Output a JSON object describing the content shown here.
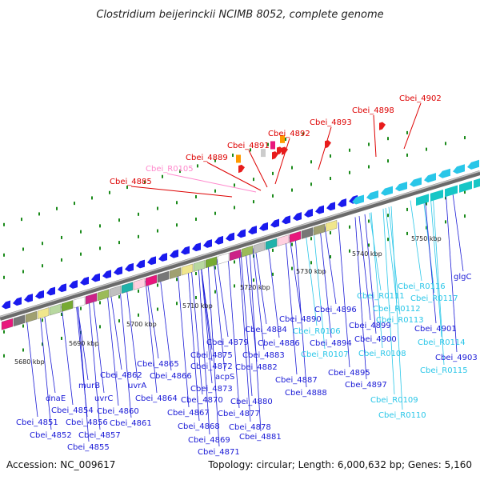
{
  "title": "Clostridium beijerinckii NCIMB 8052, complete genome",
  "footer": {
    "accession": "Accession: NC_009617",
    "summary": "Topology: circular; Length: 6,000,632 bp; Genes: 5,160"
  },
  "colors": {
    "forward_gene": "#1a1aee",
    "reverse_gene": "#d0d0d0",
    "rna_gene": "#29c6e8",
    "highlight_gene": "#e81c1c",
    "trna_label": "#ff88cc",
    "backbone": "#808080",
    "dots": "#1a8a1a",
    "orange": "#ff9900"
  },
  "ticks": [
    "5680 kbp",
    "5690 kbp",
    "5700 kbp",
    "5710 kbp",
    "5720 kbp",
    "5730 kbp",
    "5740 kbp",
    "5750 kbp"
  ],
  "labels_top": [
    {
      "text": "Cbei_4885",
      "color": "red"
    },
    {
      "text": "Cbei_R0105",
      "color": "pink"
    },
    {
      "text": "Cbei_4889",
      "color": "red"
    },
    {
      "text": "Cbei_4891",
      "color": "red"
    },
    {
      "text": "Cbei_4892",
      "color": "red"
    },
    {
      "text": "Cbei_4893",
      "color": "red"
    },
    {
      "text": "Cbei_4898",
      "color": "red"
    },
    {
      "text": "Cbei_4902",
      "color": "red"
    }
  ],
  "labels_bottom": [
    {
      "text": "Cbei_4851",
      "color": "blue"
    },
    {
      "text": "Cbei_4852",
      "color": "blue"
    },
    {
      "text": "dnaE",
      "color": "blue"
    },
    {
      "text": "Cbei_4854",
      "color": "blue"
    },
    {
      "text": "Cbei_4855",
      "color": "blue"
    },
    {
      "text": "Cbei_4856",
      "color": "blue"
    },
    {
      "text": "murB",
      "color": "blue"
    },
    {
      "text": "Cbei_4857",
      "color": "blue"
    },
    {
      "text": "uvrC",
      "color": "blue"
    },
    {
      "text": "Cbei_4860",
      "color": "blue"
    },
    {
      "text": "Cbei_4862",
      "color": "blue"
    },
    {
      "text": "Cbei_4861",
      "color": "blue"
    },
    {
      "text": "uvrA",
      "color": "blue"
    },
    {
      "text": "Cbei_4865",
      "color": "blue"
    },
    {
      "text": "Cbei_4864",
      "color": "blue"
    },
    {
      "text": "Cbei_4866",
      "color": "blue"
    },
    {
      "text": "Cbei_4867",
      "color": "blue"
    },
    {
      "text": "Cbei_4868",
      "color": "blue"
    },
    {
      "text": "Cbei_4869",
      "color": "blue"
    },
    {
      "text": "Cbei_4870",
      "color": "blue"
    },
    {
      "text": "Cbei_4871",
      "color": "blue"
    },
    {
      "text": "Cbei_4872",
      "color": "blue"
    },
    {
      "text": "Cbei_4873",
      "color": "blue"
    },
    {
      "text": "Cbei_4875",
      "color": "blue"
    },
    {
      "text": "Cbei_4879",
      "color": "blue"
    },
    {
      "text": "acpS",
      "color": "blue"
    },
    {
      "text": "Cbei_4877",
      "color": "blue"
    },
    {
      "text": "Cbei_4878",
      "color": "blue"
    },
    {
      "text": "Cbei_4880",
      "color": "blue"
    },
    {
      "text": "Cbei_4881",
      "color": "blue"
    },
    {
      "text": "Cbei_4882",
      "color": "blue"
    },
    {
      "text": "Cbei_4883",
      "color": "blue"
    },
    {
      "text": "Cbei_4884",
      "color": "blue"
    },
    {
      "text": "Cbei_4886",
      "color": "blue"
    },
    {
      "text": "Cbei_4887",
      "color": "blue"
    },
    {
      "text": "Cbei_4888",
      "color": "blue"
    },
    {
      "text": "Cbei_4890",
      "color": "blue"
    },
    {
      "text": "Cbei_R0106",
      "color": "cyan"
    },
    {
      "text": "Cbei_4894",
      "color": "blue"
    },
    {
      "text": "Cbei_R0107",
      "color": "cyan"
    },
    {
      "text": "Cbei_4895",
      "color": "blue"
    },
    {
      "text": "Cbei_4896",
      "color": "blue"
    },
    {
      "text": "Cbei_4897",
      "color": "blue"
    },
    {
      "text": "Cbei_4899",
      "color": "blue"
    },
    {
      "text": "Cbei_4900",
      "color": "blue"
    },
    {
      "text": "Cbei_R0108",
      "color": "cyan"
    },
    {
      "text": "Cbei_R0111",
      "color": "cyan"
    },
    {
      "text": "Cbei_R0112",
      "color": "cyan"
    },
    {
      "text": "Cbei_R0113",
      "color": "cyan"
    },
    {
      "text": "Cbei_R0109",
      "color": "cyan"
    },
    {
      "text": "Cbei_R0110",
      "color": "cyan"
    },
    {
      "text": "Cbei_R0116",
      "color": "cyan"
    },
    {
      "text": "Cbei_R0117",
      "color": "cyan"
    },
    {
      "text": "Cbei_4901",
      "color": "blue"
    },
    {
      "text": "Cbei_R0114",
      "color": "cyan"
    },
    {
      "text": "Cbei_4903",
      "color": "blue"
    },
    {
      "text": "Cbei_R0115",
      "color": "cyan"
    },
    {
      "text": "glgC",
      "color": "blue"
    }
  ]
}
